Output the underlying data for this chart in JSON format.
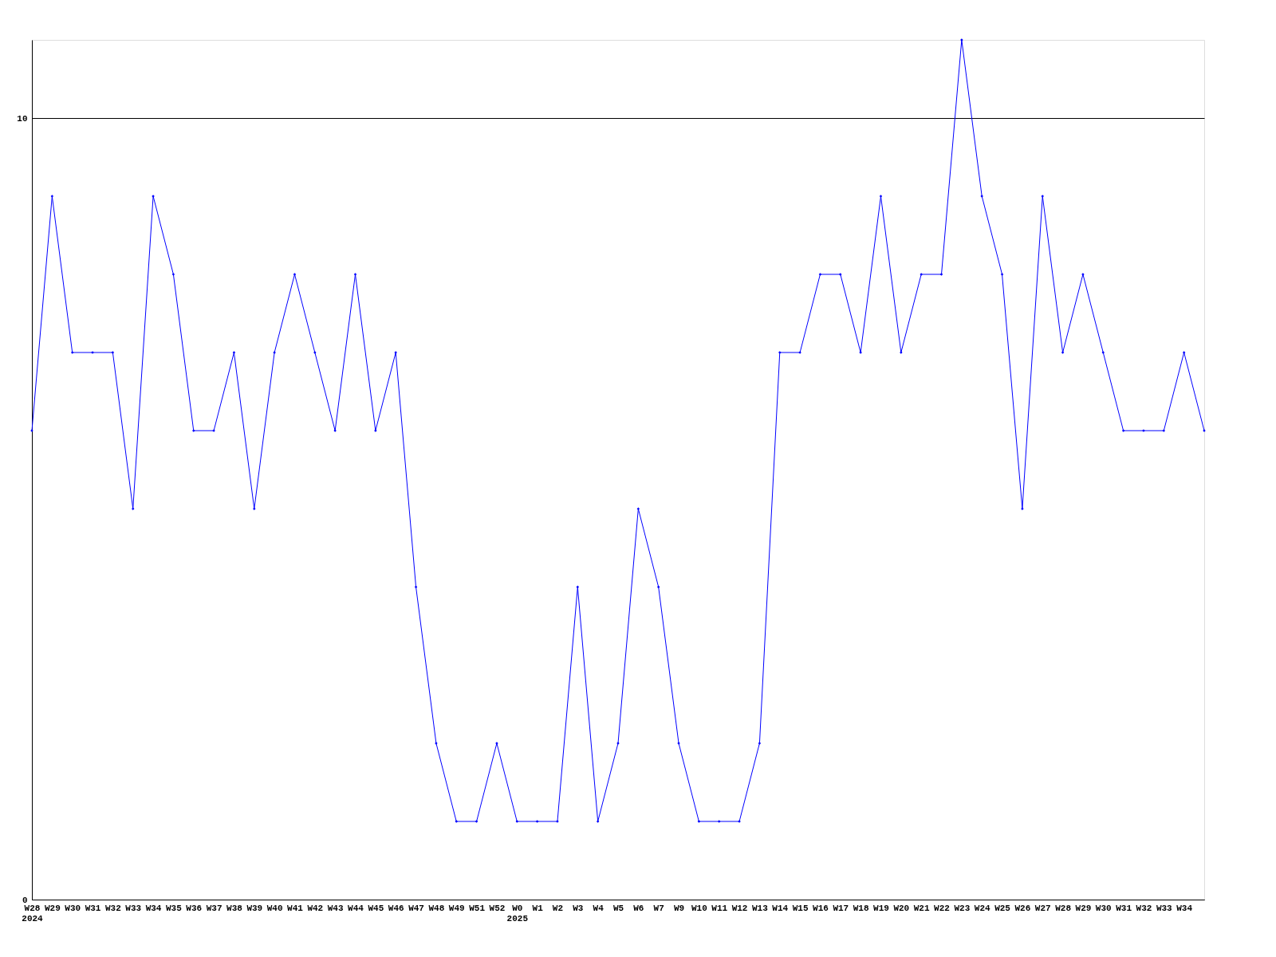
{
  "chart_data": {
    "type": "line",
    "categories": [
      "W28\n2024",
      "W29",
      "W30",
      "W31",
      "W32",
      "W33",
      "W34",
      "W35",
      "W36",
      "W37",
      "W38",
      "W39",
      "W40",
      "W41",
      "W42",
      "W43",
      "W44",
      "W45",
      "W46",
      "W47",
      "W48",
      "W49",
      "W51",
      "W52",
      "W0\n2025",
      "W1",
      "W2",
      "W3",
      "W4",
      "W5",
      "W6",
      "W7",
      "W9",
      "W10",
      "W11",
      "W12",
      "W13",
      "W14",
      "W15",
      "W16",
      "W17",
      "W18",
      "W19",
      "W20",
      "W21",
      "W22",
      "W23",
      "W24",
      "W25",
      "W26",
      "W27",
      "W28",
      "W29",
      "W30",
      "W31",
      "W32",
      "W33",
      "W34",
      null
    ],
    "series": [
      {
        "color": "#0000ff",
        "values": [
          6,
          9,
          7,
          7,
          7,
          5,
          9,
          8,
          6,
          6,
          7,
          5,
          7,
          8,
          7,
          6,
          8,
          6,
          7,
          4,
          2,
          1,
          1,
          2,
          1,
          1,
          1,
          4,
          1,
          2,
          5,
          4,
          2,
          1,
          1,
          1,
          2,
          7,
          7,
          8,
          8,
          7,
          9,
          7,
          8,
          8,
          11,
          9,
          8,
          5,
          9,
          7,
          8,
          7,
          6,
          6,
          6,
          7,
          6
        ]
      }
    ],
    "ylim": [
      0,
      11
    ],
    "yticks": [
      0,
      10
    ],
    "grid": "y",
    "marker": "diamond",
    "line_style": "solid"
  }
}
